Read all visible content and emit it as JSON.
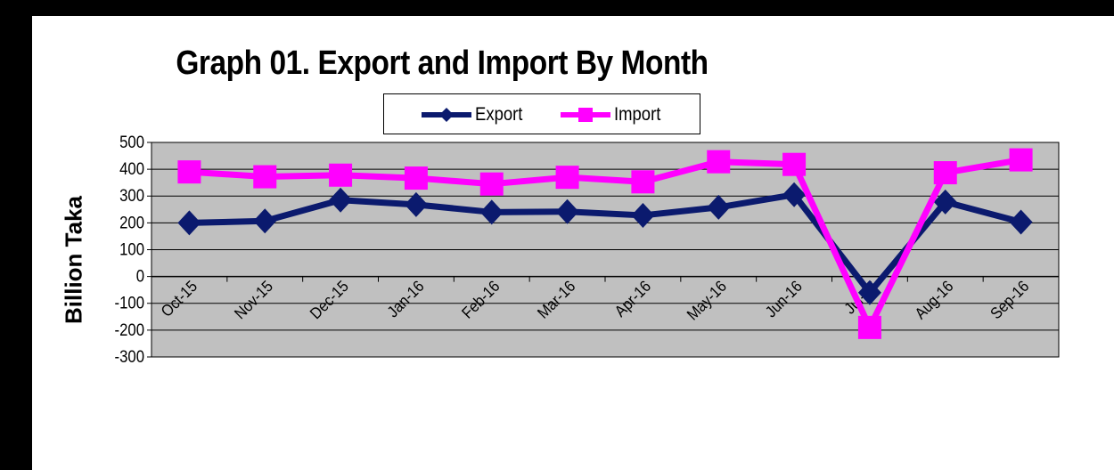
{
  "chart_data": {
    "type": "line",
    "title": "Graph 01. Export and Import By Month",
    "xlabel": "",
    "ylabel": "Billion Taka",
    "categories": [
      "Oct-15",
      "Nov-15",
      "Dec-15",
      "Jan-16",
      "Feb-16",
      "Mar-16",
      "Apr-16",
      "May-16",
      "Jun-16",
      "Jul-16",
      "Aug-16",
      "Sep-16"
    ],
    "series": [
      {
        "name": "Export",
        "color": "#0b1a6e",
        "marker": "diamond",
        "values": [
          200,
          207,
          285,
          268,
          240,
          242,
          228,
          258,
          305,
          -60,
          278,
          203
        ]
      },
      {
        "name": "Import",
        "color": "#ff00ff",
        "marker": "square",
        "values": [
          390,
          372,
          378,
          367,
          345,
          370,
          353,
          428,
          418,
          -190,
          387,
          435
        ]
      }
    ],
    "ylim": [
      -300,
      500
    ],
    "yticks": [
      500,
      400,
      300,
      200,
      100,
      0,
      -100,
      -200,
      -300
    ],
    "grid": true,
    "plot_background": "#c0c0c0",
    "legend_position": "top"
  }
}
